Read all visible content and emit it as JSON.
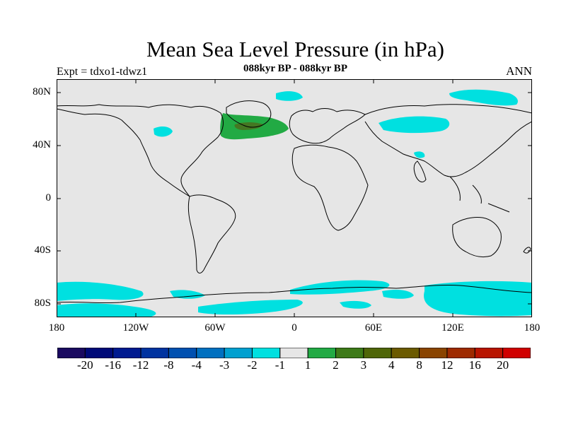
{
  "title": "Mean Sea Level Pressure (in hPa)",
  "subtitle": "088kyr BP - 088kyr BP",
  "left_label": "Expt = tdxo1-tdwz1",
  "right_label": "ANN",
  "colors": {
    "land_sea_background": "#e6e6e6",
    "coastline": "#000000",
    "negative_anomaly_fill": "#00e0e0",
    "positive_anomaly_fill": "#22aa44",
    "positive_anomaly_core": "#447722"
  },
  "map": {
    "projection": "cylindrical-equidistant",
    "lat_ticks": [
      "80N",
      "40N",
      "0",
      "40S",
      "80S"
    ],
    "lon_ticks": [
      "180",
      "120W",
      "60W",
      "0",
      "60E",
      "120E",
      "180"
    ]
  },
  "colorbar": {
    "labels": [
      "-20",
      "-16",
      "-12",
      "-8",
      "-4",
      "-3",
      "-2",
      "-1",
      "1",
      "2",
      "3",
      "4",
      "8",
      "12",
      "16",
      "20"
    ],
    "colors": [
      "#1a0a60",
      "#000a78",
      "#001a90",
      "#0033a0",
      "#0050b0",
      "#0070c0",
      "#00a0d0",
      "#00e0e0",
      "#e6e6e6",
      "#22aa44",
      "#3d7a18",
      "#4f6608",
      "#6b5a00",
      "#8a4400",
      "#9e2a00",
      "#b81400",
      "#d00000"
    ]
  }
}
